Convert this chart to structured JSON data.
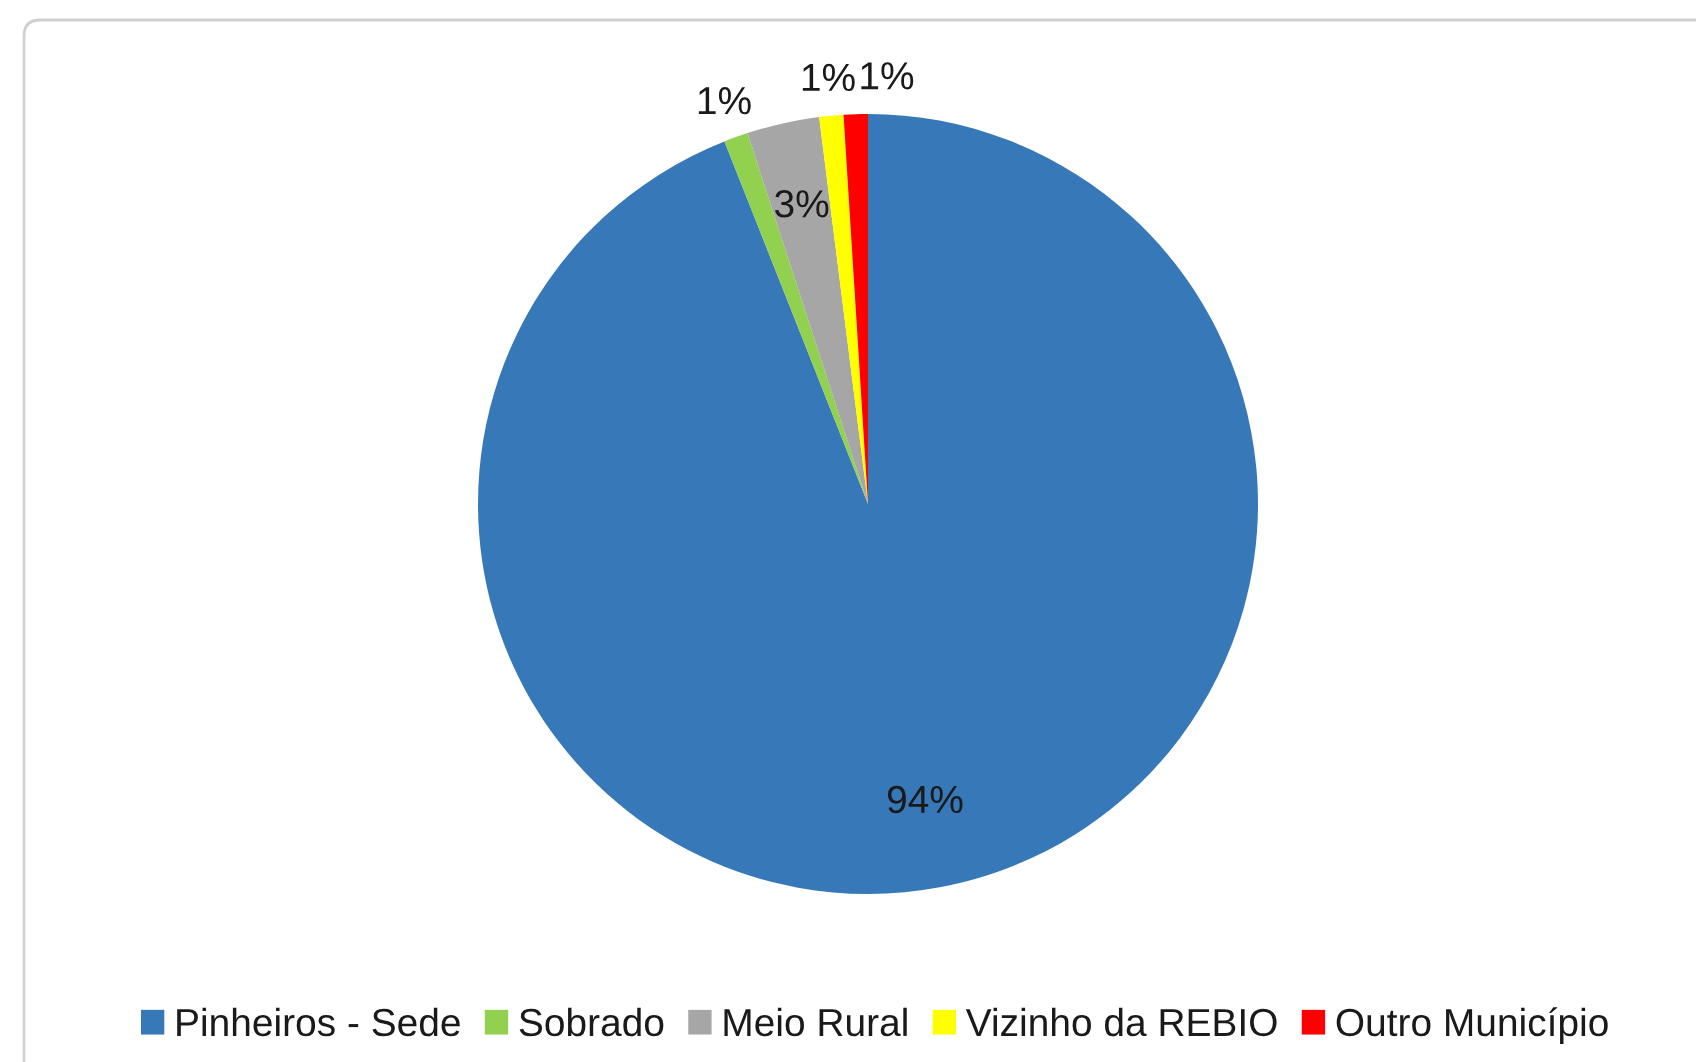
{
  "chart_data": {
    "type": "pie",
    "categories": [
      "Pinheiros - Sede",
      "Sobrado",
      "Meio Rural",
      "Vizinho da REBIO",
      "Outro Município"
    ],
    "values": [
      94,
      1,
      3,
      1,
      1
    ],
    "colors": [
      "#3779b8",
      "#92d050",
      "#a6a6a6",
      "#ffff00",
      "#ff0000"
    ],
    "value_labels": [
      "94%",
      "1%",
      "3%",
      "1%",
      "1%"
    ],
    "legend": "bottom"
  }
}
